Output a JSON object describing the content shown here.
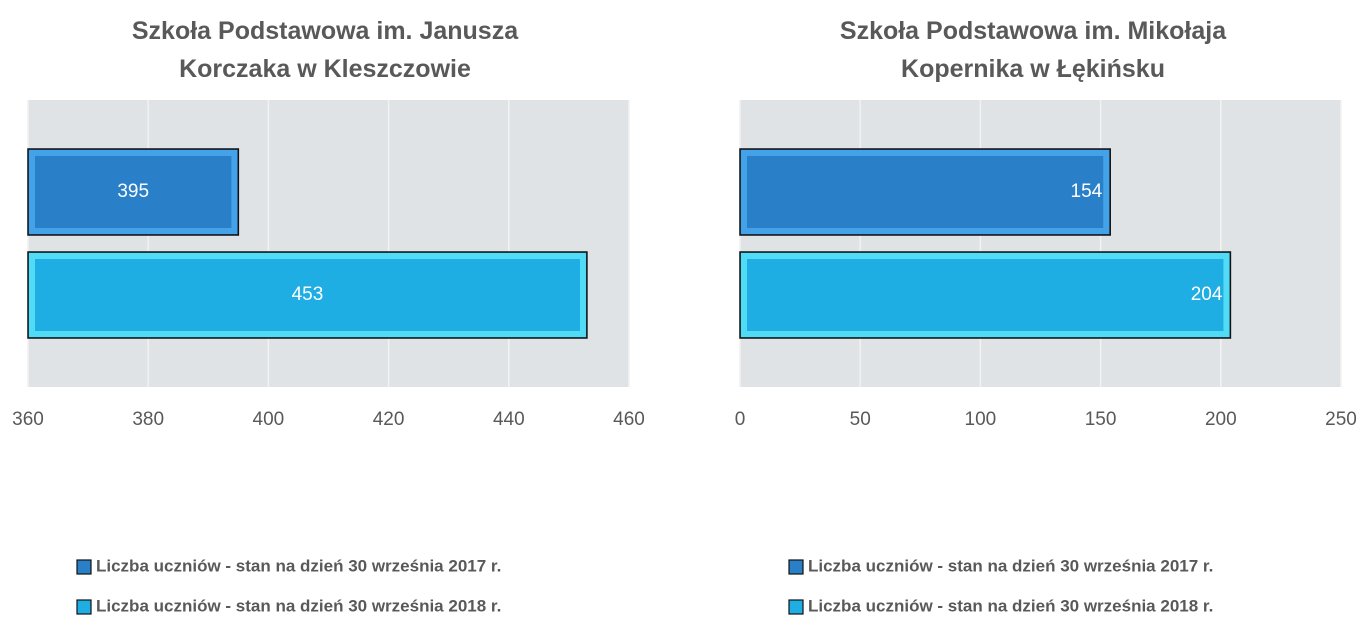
{
  "chart_data": [
    {
      "type": "bar",
      "orientation": "horizontal",
      "title": "Szkoła Podstawowa im. Janusza Korczaka w Kleszczowie",
      "series": [
        {
          "name": "Liczba uczniów - stan na dzień 30 września 2017 r.",
          "color": "#2a80c8",
          "values": [
            395
          ]
        },
        {
          "name": "Liczba uczniów - stan na dzień 30 września 2018 r.",
          "color": "#1eaee4",
          "values": [
            453
          ]
        }
      ],
      "xlim": [
        360,
        460
      ],
      "xticks": [
        360,
        380,
        400,
        420,
        440,
        460
      ],
      "grid": true,
      "label_position": "center",
      "legend": "bottom"
    },
    {
      "type": "bar",
      "orientation": "horizontal",
      "title": "Szkoła Podstawowa im. Mikołaja Kopernika w Łękińsku",
      "series": [
        {
          "name": "Liczba uczniów - stan na dzień 30 września 2017 r.",
          "color": "#2a80c8",
          "values": [
            154
          ]
        },
        {
          "name": "Liczba uczniów - stan na dzień 30 września 2018 r.",
          "color": "#1eaee4",
          "values": [
            204
          ]
        }
      ],
      "xlim": [
        0,
        250
      ],
      "xticks": [
        0,
        50,
        100,
        150,
        200,
        250
      ],
      "grid": true,
      "label_position": "inside_end",
      "legend": "bottom"
    }
  ]
}
